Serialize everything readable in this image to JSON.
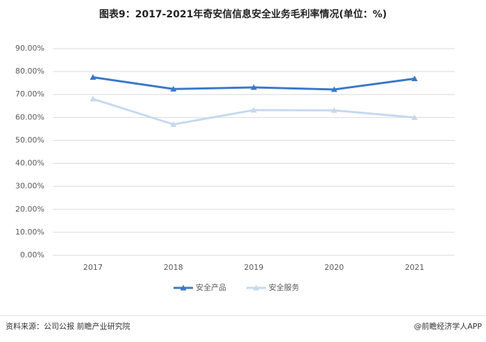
{
  "chart_data": {
    "type": "line",
    "title": "图表9：2017-2021年奇安信信息安全业务毛利率情况(单位：%)",
    "categories": [
      "2017",
      "2018",
      "2019",
      "2020",
      "2021"
    ],
    "series": [
      {
        "name": "安全产品",
        "color": "#3a78c9",
        "values": [
          77.5,
          72.4,
          73.1,
          72.2,
          76.9
        ]
      },
      {
        "name": "安全服务",
        "color": "#c5d9ef",
        "values": [
          68.1,
          57.0,
          63.2,
          63.1,
          60.0
        ]
      }
    ],
    "ylim": [
      0,
      90
    ],
    "yticks": [
      {
        "value": 0,
        "label": "0.00%"
      },
      {
        "value": 10,
        "label": "10.00%"
      },
      {
        "value": 20,
        "label": "20.00%"
      },
      {
        "value": 30,
        "label": "30.00%"
      },
      {
        "value": 40,
        "label": "40.00%"
      },
      {
        "value": 50,
        "label": "50.00%"
      },
      {
        "value": 60,
        "label": "60.00%"
      },
      {
        "value": 70,
        "label": "70.00%"
      },
      {
        "value": 80,
        "label": "80.00%"
      },
      {
        "value": 90,
        "label": "90.00%"
      }
    ],
    "grid": true,
    "legend": "bottom",
    "source": "资料来源：公司公报 前瞻产业研究院",
    "credit": "@前瞻经济学人APP"
  }
}
